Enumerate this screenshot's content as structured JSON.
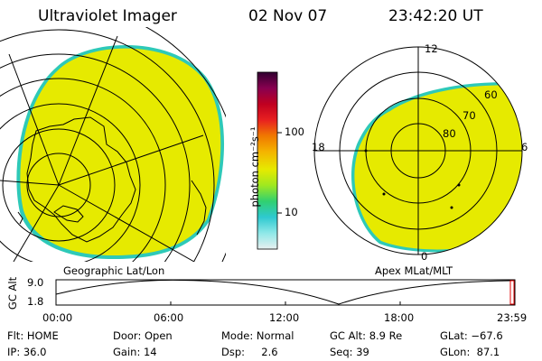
{
  "header": {
    "instrument": "Ultraviolet Imager",
    "date": "02 Nov 07",
    "time": "23:42:20 UT"
  },
  "colors": {
    "fill": "#e6ea00",
    "fill_edge": "#2ec9b8",
    "grid": "#000000"
  },
  "colorbar": {
    "unit_label": "photon cm⁻²s⁻¹",
    "tick_100": "100",
    "tick_10": "10",
    "stops": [
      "#e8f0f0",
      "#8fe8e8",
      "#2ec9d0",
      "#30d070",
      "#9fe820",
      "#e6ea00",
      "#f4b400",
      "#f07800",
      "#e82020",
      "#c00020",
      "#880050",
      "#300030"
    ]
  },
  "left_panel": {
    "caption": "Geographic Lat/Lon"
  },
  "right_panel": {
    "caption": "Apex MLat/MLT",
    "mlt_12": "12",
    "mlt_18": "18",
    "mlt_6": "6",
    "mlt_0": "0",
    "lat_60": "60",
    "lat_70": "70",
    "lat_80": "80"
  },
  "altitude_plot": {
    "ylabel": "GC Alt",
    "ytick_top": "9.0",
    "ytick_bottom": "1.8",
    "x_ticks": [
      "00:00",
      "06:00",
      "12:00",
      "18:00",
      "23:59"
    ]
  },
  "info": {
    "flt": "Flt: HOME",
    "ip": "IP: 36.0",
    "door": "Door: Open",
    "gain": "Gain: 14",
    "mode": "Mode: Normal",
    "dsp": "Dsp:     2.6",
    "gc_alt": "GC Alt: 8.9 Re",
    "seq": "Seq: 39",
    "glat": "GLat: −67.6",
    "glon": "GLon:  87.1"
  }
}
